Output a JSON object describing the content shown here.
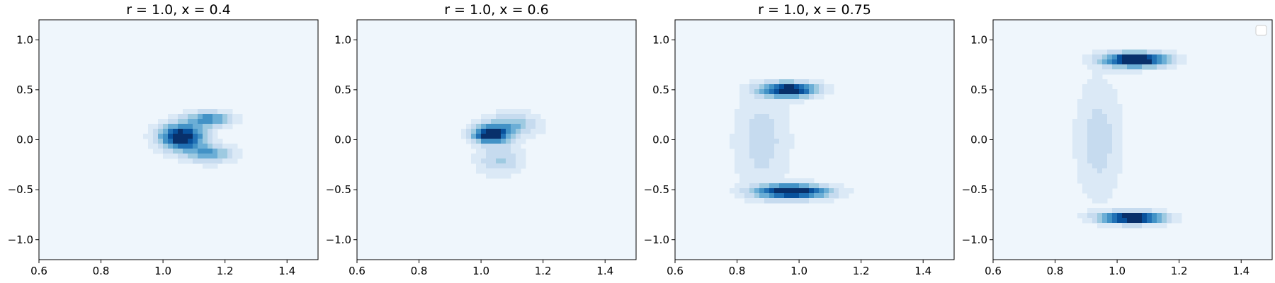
{
  "chart_data": [
    {
      "type": "contour",
      "title": "r = 1.0, x = 0.4",
      "xlim": [
        0.6,
        1.5
      ],
      "ylim": [
        -1.2,
        1.2
      ],
      "xticks": [
        0.6,
        0.8,
        1.0,
        1.2,
        1.4
      ],
      "xtick_labels": [
        "0.6",
        "0.8",
        "1.0",
        "1.2",
        "1.4"
      ],
      "yticks": [
        -1.0,
        -0.5,
        0.0,
        0.5,
        1.0
      ],
      "ytick_labels": [
        "−1.0",
        "−0.5",
        "0.0",
        "0.5",
        "1.0"
      ],
      "colormap": "Blues",
      "density_peaks": [
        {
          "x": 1.06,
          "y": 0.03,
          "spread_x": 0.05,
          "spread_y": 0.09,
          "weight": 1.0
        },
        {
          "x": 1.15,
          "y": 0.21,
          "spread_x": 0.05,
          "spread_y": 0.05,
          "weight": 0.55
        },
        {
          "x": 1.15,
          "y": -0.14,
          "spread_x": 0.05,
          "spread_y": 0.06,
          "weight": 0.5
        }
      ]
    },
    {
      "type": "contour",
      "title": "r = 1.0, x = 0.6",
      "xlim": [
        0.6,
        1.5
      ],
      "ylim": [
        -1.2,
        1.2
      ],
      "xticks": [
        0.6,
        0.8,
        1.0,
        1.2,
        1.4
      ],
      "xtick_labels": [
        "0.6",
        "0.8",
        "1.0",
        "1.2",
        "1.4"
      ],
      "yticks": [
        -1.0,
        -0.5,
        0.0,
        0.5,
        1.0
      ],
      "ytick_labels": [
        "−1.0",
        "−0.5",
        "0.0",
        "0.5",
        "1.0"
      ],
      "colormap": "Blues",
      "density_peaks": [
        {
          "x": 1.03,
          "y": 0.05,
          "spread_x": 0.04,
          "spread_y": 0.06,
          "weight": 1.0
        },
        {
          "x": 1.1,
          "y": 0.15,
          "spread_x": 0.06,
          "spread_y": 0.08,
          "weight": 0.4
        },
        {
          "x": 1.06,
          "y": -0.2,
          "spread_x": 0.05,
          "spread_y": 0.1,
          "weight": 0.3
        }
      ]
    },
    {
      "type": "contour",
      "title": "r = 1.0, x = 0.75",
      "xlim": [
        0.6,
        1.5
      ],
      "ylim": [
        -1.2,
        1.2
      ],
      "xticks": [
        0.6,
        0.8,
        1.0,
        1.2,
        1.4
      ],
      "xtick_labels": [
        "0.6",
        "0.8",
        "1.0",
        "1.2",
        "1.4"
      ],
      "yticks": [
        -1.0,
        -0.5,
        0.0,
        0.5,
        1.0
      ],
      "ytick_labels": [
        "−1.0",
        "−0.5",
        "0.0",
        "0.5",
        "1.0"
      ],
      "colormap": "Blues",
      "density_peaks": [
        {
          "x": 0.97,
          "y": 0.5,
          "spread_x": 0.06,
          "spread_y": 0.05,
          "weight": 1.0
        },
        {
          "x": 0.98,
          "y": -0.52,
          "spread_x": 0.08,
          "spread_y": 0.05,
          "weight": 1.0
        },
        {
          "x": 0.88,
          "y": 0.0,
          "spread_x": 0.06,
          "spread_y": 0.35,
          "weight": 0.22
        }
      ]
    },
    {
      "type": "contour",
      "title": "",
      "xlim": [
        0.6,
        1.5
      ],
      "ylim": [
        -1.2,
        1.2
      ],
      "xticks": [
        0.6,
        0.8,
        1.0,
        1.2,
        1.4
      ],
      "xtick_labels": [
        "0.6",
        "0.8",
        "1.0",
        "1.2",
        "1.4"
      ],
      "yticks": [
        -1.0,
        -0.5,
        0.0,
        0.5,
        1.0
      ],
      "ytick_labels": [
        "−1.0",
        "−0.5",
        "0.0",
        "0.5",
        "1.0"
      ],
      "colormap": "Blues",
      "legend": "top-right, empty",
      "density_peaks": [
        {
          "x": 1.06,
          "y": 0.8,
          "spread_x": 0.07,
          "spread_y": 0.05,
          "weight": 1.0
        },
        {
          "x": 1.05,
          "y": -0.78,
          "spread_x": 0.07,
          "spread_y": 0.04,
          "weight": 1.0
        },
        {
          "x": 0.94,
          "y": 0.0,
          "spread_x": 0.05,
          "spread_y": 0.4,
          "weight": 0.2
        }
      ]
    }
  ],
  "colors": {
    "levels": [
      "#eff6fc",
      "#dbe9f6",
      "#c6dbef",
      "#9ecae1",
      "#6baed6",
      "#4292c6",
      "#2171b5",
      "#08519c",
      "#08306b"
    ]
  }
}
